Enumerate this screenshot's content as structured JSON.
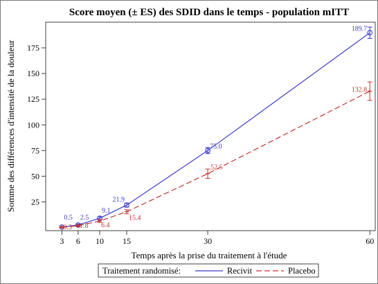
{
  "chart_data": {
    "type": "line",
    "title": "Score moyen (± ES) des SDID dans le temps - population mITT",
    "xlabel": "Temps après la prise du traitement à l'étude",
    "ylabel": "Somme des différences d'intensité de la douleur",
    "x_ticks": [
      3,
      6,
      10,
      15,
      30,
      60
    ],
    "y_ticks": [
      25,
      50,
      75,
      100,
      125,
      150,
      175
    ],
    "xlim": [
      0,
      61
    ],
    "ylim": [
      -3,
      200
    ],
    "grid": false,
    "legend_position": "bottom",
    "legend_title": "Traitement randomisé:",
    "series": [
      {
        "name": "Recivit",
        "color": "#3c3cc8",
        "line_style": "solid",
        "marker": "circle",
        "x": [
          3,
          6,
          10,
          15,
          30,
          60
        ],
        "y": [
          0.5,
          2.5,
          9.1,
          21.9,
          75.0,
          189.7
        ],
        "error": [
          0.6,
          0.9,
          1.5,
          2.0,
          3.0,
          5.5
        ],
        "labels": [
          "0.5",
          "2.5",
          "9.1",
          "21.9",
          "75.0",
          "189.7"
        ]
      },
      {
        "name": "Placebo",
        "color": "#c83232",
        "line_style": "dashed",
        "marker": "cross",
        "x": [
          3,
          6,
          10,
          15,
          30,
          60
        ],
        "y": [
          0.3,
          1.8,
          6.4,
          15.4,
          52.5,
          132.8
        ],
        "error": [
          0.5,
          0.8,
          1.3,
          2.0,
          4.5,
          9.0
        ],
        "labels": [
          "0.3",
          "1.8",
          "6.4",
          "15.4",
          "52.5",
          "132.8"
        ]
      }
    ]
  }
}
